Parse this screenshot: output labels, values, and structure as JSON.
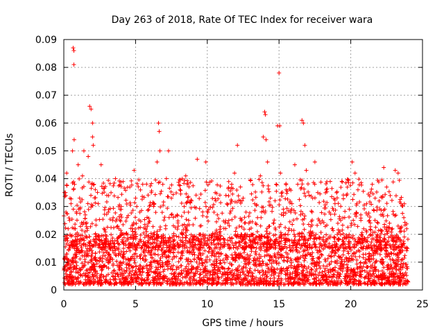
{
  "chart_data": {
    "type": "scatter",
    "title": "Day 263 of 2018, Rate Of TEC Index for receiver wara",
    "xlabel": "GPS time / hours",
    "ylabel": "ROTI / TECUs",
    "xlim": [
      0,
      25
    ],
    "ylim": [
      0,
      0.09
    ],
    "x_ticks": [
      "0",
      "5",
      "10",
      "15",
      "20",
      "25"
    ],
    "y_ticks": [
      "0",
      "0.01",
      "0.02",
      "0.03",
      "0.04",
      "0.05",
      "0.06",
      "0.07",
      "0.08",
      "0.09"
    ],
    "x_tick_values": [
      0,
      5,
      10,
      15,
      20,
      25
    ],
    "y_tick_values": [
      0,
      0.01,
      0.02,
      0.03,
      0.04,
      0.05,
      0.06,
      0.07,
      0.08,
      0.09
    ],
    "grid": true,
    "marker": "+",
    "series_color": "#ff0000",
    "series": [
      {
        "name": "ROTI",
        "x": [
          0.05,
          0.1,
          0.15,
          0.2,
          0.3,
          0.4,
          0.5,
          0.6,
          0.65,
          0.7,
          0.7,
          0.72,
          0.75,
          0.8,
          0.9,
          1.0,
          1.1,
          1.2,
          1.3,
          1.4,
          1.5,
          1.6,
          1.7,
          1.8,
          1.9,
          2.0,
          2.0,
          2.05,
          2.1,
          2.2,
          2.4,
          2.6,
          2.8,
          2.9,
          3.0,
          3.1,
          3.2,
          3.4,
          3.6,
          3.8,
          4.0,
          4.2,
          4.4,
          4.6,
          4.8,
          4.9,
          5.0,
          5.1,
          5.3,
          5.5,
          5.7,
          5.9,
          6.1,
          6.3,
          6.5,
          6.6,
          6.65,
          6.7,
          6.9,
          7.1,
          7.3,
          7.5,
          7.7,
          7.9,
          8.1,
          8.3,
          8.5,
          8.7,
          8.9,
          9.1,
          9.3,
          9.5,
          9.7,
          9.9,
          10.1,
          10.3,
          10.5,
          10.7,
          10.9,
          11.1,
          11.3,
          11.5,
          11.7,
          11.9,
          12.1,
          12.3,
          12.5,
          12.7,
          12.9,
          13.1,
          13.3,
          13.5,
          13.7,
          13.9,
          14.0,
          14.05,
          14.1,
          14.2,
          14.4,
          14.6,
          14.8,
          14.9,
          15.0,
          15.05,
          15.1,
          15.3,
          15.5,
          15.7,
          15.9,
          16.1,
          16.3,
          16.5,
          16.6,
          16.7,
          16.8,
          16.9,
          17.1,
          17.3,
          17.5,
          17.7,
          17.9,
          18.1,
          18.3,
          18.5,
          18.7,
          18.9,
          19.1,
          19.3,
          19.5,
          19.7,
          19.9,
          20.1,
          20.3,
          20.5,
          20.7,
          20.9,
          21.1,
          21.3,
          21.5,
          21.7,
          21.9,
          22.1,
          22.3,
          22.5,
          22.7,
          22.9,
          23.1,
          23.3,
          23.5,
          23.7,
          23.9
        ],
        "y": [
          0.035,
          0.012,
          0.028,
          0.042,
          0.009,
          0.025,
          0.031,
          0.05,
          0.087,
          0.086,
          0.081,
          0.054,
          0.038,
          0.022,
          0.012,
          0.045,
          0.033,
          0.018,
          0.041,
          0.05,
          0.027,
          0.014,
          0.048,
          0.066,
          0.065,
          0.06,
          0.055,
          0.052,
          0.038,
          0.02,
          0.031,
          0.045,
          0.022,
          0.015,
          0.034,
          0.028,
          0.011,
          0.025,
          0.04,
          0.019,
          0.03,
          0.013,
          0.026,
          0.037,
          0.021,
          0.043,
          0.033,
          0.012,
          0.028,
          0.038,
          0.017,
          0.024,
          0.035,
          0.031,
          0.046,
          0.06,
          0.057,
          0.05,
          0.038,
          0.022,
          0.05,
          0.033,
          0.018,
          0.027,
          0.036,
          0.014,
          0.041,
          0.025,
          0.032,
          0.011,
          0.047,
          0.023,
          0.013,
          0.046,
          0.029,
          0.009,
          0.018,
          0.027,
          0.021,
          0.016,
          0.034,
          0.025,
          0.038,
          0.042,
          0.052,
          0.019,
          0.033,
          0.028,
          0.024,
          0.015,
          0.031,
          0.026,
          0.041,
          0.055,
          0.064,
          0.063,
          0.054,
          0.046,
          0.033,
          0.024,
          0.038,
          0.059,
          0.078,
          0.059,
          0.042,
          0.029,
          0.036,
          0.022,
          0.031,
          0.045,
          0.038,
          0.027,
          0.061,
          0.06,
          0.052,
          0.043,
          0.034,
          0.028,
          0.046,
          0.035,
          0.024,
          0.019,
          0.036,
          0.028,
          0.022,
          0.031,
          0.018,
          0.025,
          0.015,
          0.034,
          0.029,
          0.046,
          0.042,
          0.036,
          0.027,
          0.022,
          0.031,
          0.025,
          0.038,
          0.033,
          0.018,
          0.027,
          0.044,
          0.037,
          0.024,
          0.022,
          0.043,
          0.042,
          0.031,
          0.026,
          0.022
        ]
      }
    ],
    "background_band": {
      "x_range": [
        0,
        24
      ],
      "y_range": [
        0.002,
        0.02
      ],
      "description_value": "dense"
    }
  }
}
